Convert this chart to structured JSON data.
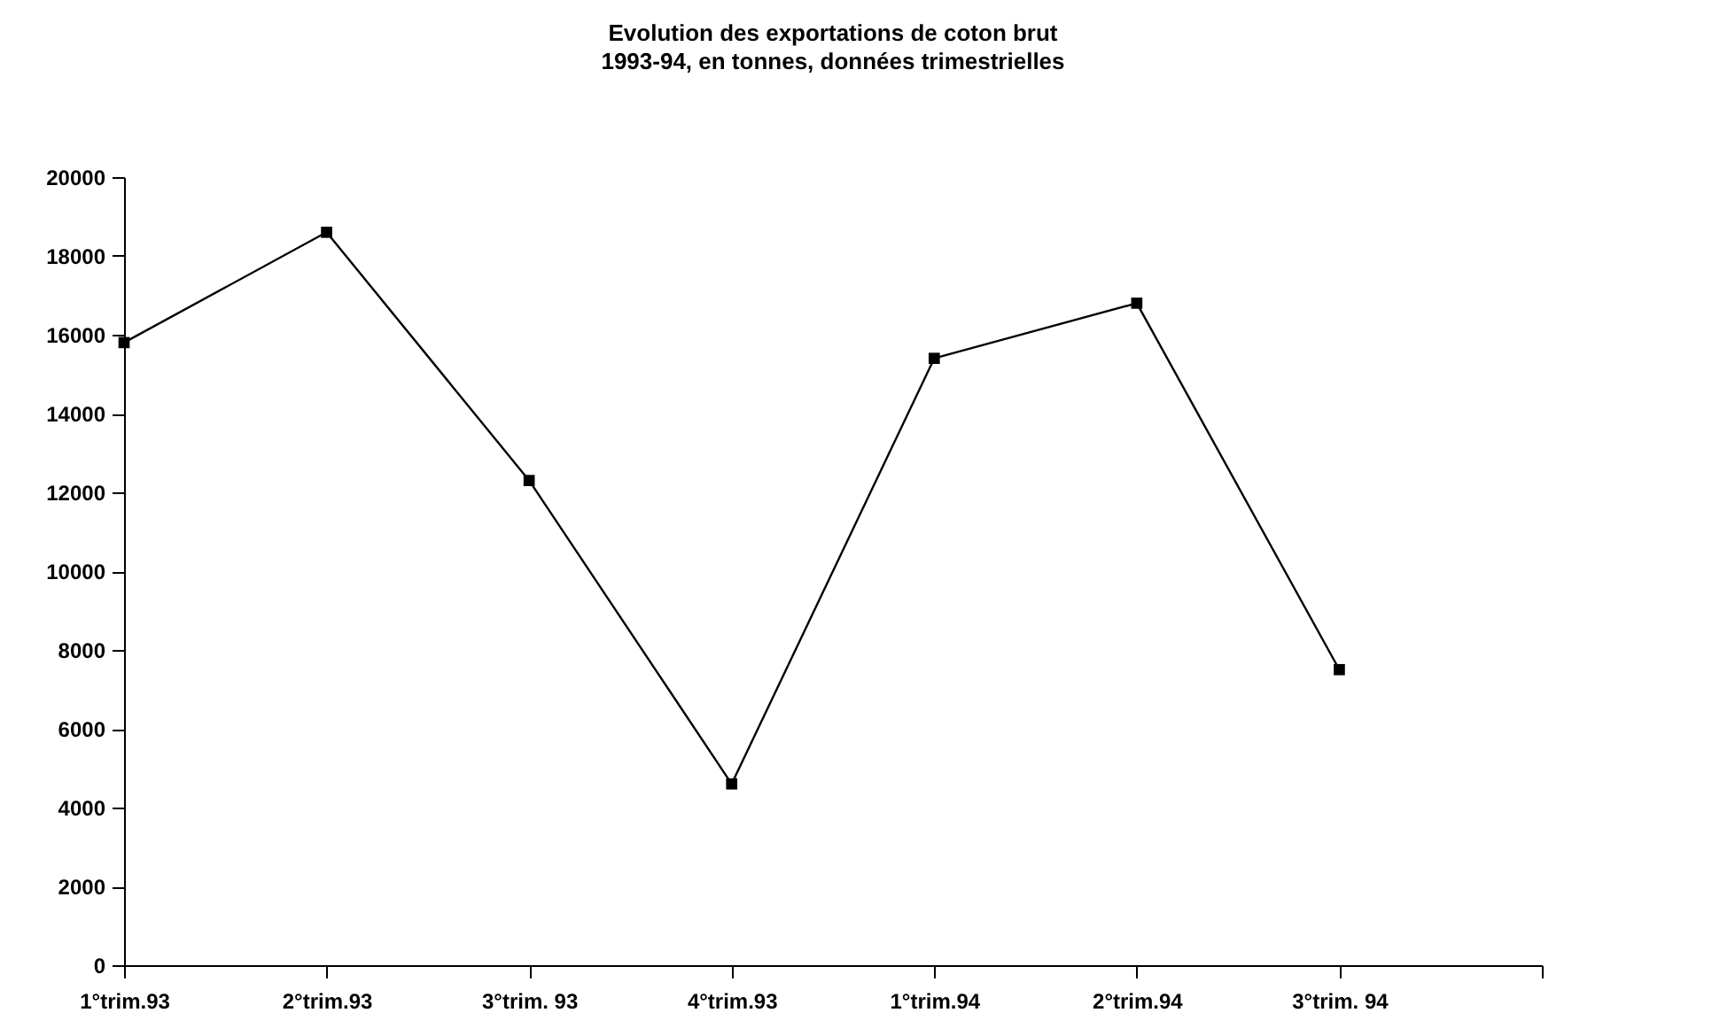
{
  "chart_data": {
    "type": "line",
    "title": "Evolution des exportations de coton brut\n1993-94, en tonnes, données trimestrielles",
    "categories": [
      "1°trim.93",
      "2°trim.93",
      "3°trim. 93",
      "4°trim.93",
      "1°trim.94",
      "2°trim.94",
      "3°trim. 94",
      null
    ],
    "series": [
      {
        "color": "#000000",
        "values": [
          15800,
          18600,
          12300,
          4600,
          15400,
          16800,
          7500,
          null
        ]
      }
    ],
    "ylim": [
      0,
      20000
    ],
    "yticks": [
      0,
      2000,
      4000,
      6000,
      8000,
      10000,
      12000,
      14000,
      16000,
      18000,
      20000
    ],
    "marker": "square"
  }
}
